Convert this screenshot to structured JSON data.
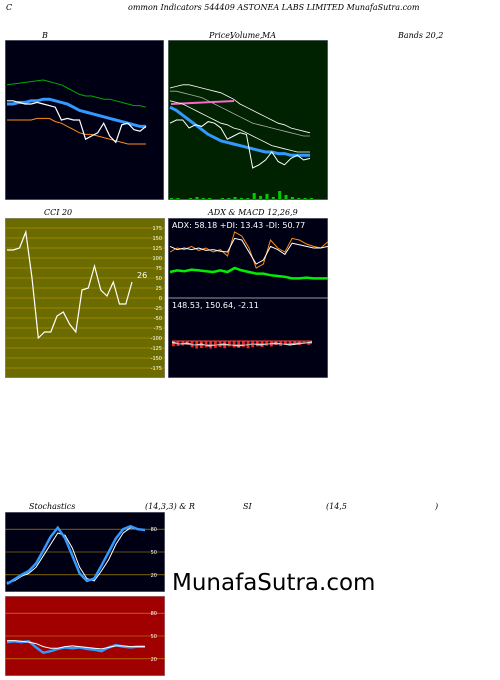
{
  "header": {
    "title": "C",
    "subtitle": "ommon  Indicators 544409 ASTONEA LABS LIMITED MunafaSutra.com"
  },
  "row1": {
    "label_b": "B",
    "label_price": "Price,",
    "label_volume": "Volume,",
    "label_ma": "MA",
    "label_bands": "Bands 20,2"
  },
  "row2": {
    "label_cci": "CCI 20",
    "label_adx": "ADX  & MACD 12,26,9",
    "adx_readout": "ADX: 58.18  +DI: 13.43 -DI: 50.77",
    "macd_readout": "148.53,  150.64,  -2.11"
  },
  "row3": {
    "label_stoch": "Stochastics",
    "label_params": "(14,3,3) & R",
    "label_si": "SI",
    "label_rsi_params": "(14,5",
    "label_close": ")"
  },
  "brand": "MunafaSutra.com",
  "colors": {
    "panel_black": "#000014",
    "panel_green": "#002200",
    "panel_olive": "#6b6b00",
    "panel_red": "#a00000",
    "blue": "#3399ff",
    "orange": "#ff8c1a",
    "green": "#00cc00"
  },
  "chart_data": [
    {
      "type": "line",
      "name": "Bollinger Bands",
      "series": [
        {
          "values": [
            72,
            72.5,
            73,
            73.5,
            74,
            74.5,
            75,
            74,
            73,
            72,
            70,
            68,
            66,
            65,
            65,
            64,
            63,
            63,
            62,
            61,
            60,
            59,
            59,
            58
          ]
        },
        {
          "values": [
            60,
            60,
            61,
            61,
            62,
            62,
            63,
            63,
            62,
            61,
            60,
            58,
            56,
            55,
            54,
            53,
            52,
            51,
            50,
            49,
            48,
            47,
            46,
            46
          ]
        },
        {
          "values": [
            50,
            50,
            50,
            50,
            50,
            51,
            51,
            51,
            49,
            48,
            46,
            44,
            42,
            41,
            41,
            40,
            39,
            38,
            37,
            36,
            35,
            35,
            35,
            35
          ]
        },
        {
          "values": [
            62,
            62,
            61,
            60,
            60,
            61,
            60,
            59,
            58,
            50,
            51,
            50,
            50,
            38,
            40,
            42,
            48,
            40,
            36,
            47,
            48,
            44,
            43,
            46
          ]
        }
      ]
    },
    {
      "type": "line",
      "name": "Price Volume MA",
      "series": [
        {
          "values": [
            70,
            71,
            72,
            72,
            71,
            70,
            69,
            68,
            67,
            65,
            63,
            60,
            58,
            56,
            54,
            52,
            50,
            48,
            47,
            45,
            44,
            43,
            42
          ]
        },
        {
          "values": [
            68,
            68,
            67,
            66,
            65,
            64,
            62,
            60,
            58,
            56,
            54,
            52,
            50,
            48,
            47,
            46,
            45,
            44,
            43,
            42,
            41,
            40,
            40
          ]
        },
        {
          "values": [
            62,
            61,
            60,
            58,
            56,
            54,
            52,
            50,
            48,
            47,
            45,
            44,
            42,
            40,
            38,
            36,
            34,
            33,
            32,
            31,
            30,
            30,
            30
          ]
        },
        {
          "values": [
            58,
            56,
            53,
            50,
            47,
            44,
            41,
            39,
            37,
            36,
            35,
            34,
            33,
            32,
            31,
            30,
            30,
            29,
            29,
            28,
            28,
            28,
            28
          ]
        },
        {
          "values": [
            48,
            50,
            50,
            45,
            47,
            46,
            49,
            48,
            45,
            38,
            40,
            42,
            41,
            20,
            22,
            25,
            30,
            24,
            22,
            26,
            28,
            25,
            26
          ]
        }
      ],
      "volume": [
        1,
        1,
        0,
        1,
        2,
        1,
        1,
        0,
        1,
        1,
        2,
        1,
        1,
        6,
        3,
        5,
        2,
        8,
        4,
        2,
        1,
        1,
        1
      ]
    },
    {
      "type": "line",
      "name": "CCI 20",
      "yticks": [
        175,
        150,
        125,
        100,
        75,
        50,
        25,
        0,
        -25,
        -50,
        -75,
        -100,
        -125,
        -150,
        -175
      ],
      "values": [
        120,
        120,
        125,
        165,
        50,
        -100,
        -85,
        -85,
        -45,
        -35,
        -65,
        -85,
        20,
        25,
        80,
        20,
        5,
        40,
        -15,
        -15,
        40
      ],
      "last_label": "26"
    },
    {
      "type": "line",
      "name": "ADX DI",
      "series": [
        {
          "values": [
            55,
            60,
            58,
            62,
            57,
            60,
            55,
            58,
            50,
            80,
            75,
            60,
            35,
            40,
            70,
            60,
            55,
            72,
            70,
            65,
            62,
            60,
            68
          ]
        },
        {
          "values": [
            62,
            58,
            60,
            58,
            60,
            57,
            58,
            56,
            55,
            72,
            70,
            55,
            40,
            45,
            62,
            58,
            52,
            66,
            64,
            62,
            60,
            60,
            62
          ]
        },
        {
          "values": [
            30,
            32,
            31,
            33,
            32,
            31,
            30,
            32,
            30,
            35,
            32,
            30,
            28,
            28,
            26,
            25,
            24,
            22,
            22,
            23,
            22,
            22,
            22
          ]
        }
      ]
    },
    {
      "type": "bar",
      "name": "MACD",
      "values": [
        -2.11,
        -2,
        -1.8,
        -1.5,
        -2.5,
        -3,
        -2.8,
        -2.6,
        -3,
        -2.7,
        -2.4,
        -2.9,
        -2.2,
        -2.6,
        -2.8,
        -2.3,
        -2.9,
        -2.5,
        -2.1,
        -2.4,
        -1.9,
        -2.2,
        -1.6,
        -2.0,
        -1.5,
        -1.8,
        -1.3,
        -1.6,
        -1.2,
        -1.5
      ]
    },
    {
      "type": "line",
      "name": "Stochastics",
      "yticks": [
        80,
        50,
        20
      ],
      "series": [
        {
          "values": [
            10,
            12,
            18,
            22,
            30,
            45,
            60,
            75,
            72,
            55,
            30,
            15,
            12,
            25,
            40,
            60,
            75,
            82,
            80,
            78
          ]
        },
        {
          "values": [
            8,
            14,
            20,
            25,
            35,
            52,
            70,
            82,
            68,
            45,
            22,
            12,
            15,
            32,
            50,
            68,
            80,
            84,
            80,
            79
          ]
        }
      ]
    },
    {
      "type": "line",
      "name": "RSI",
      "yticks": [
        80,
        50,
        20
      ],
      "series": [
        {
          "values": [
            42,
            43,
            42,
            43,
            35,
            28,
            30,
            33,
            35,
            34,
            35,
            33,
            32,
            30,
            35,
            38,
            36,
            35,
            36,
            36
          ]
        },
        {
          "values": [
            44,
            44,
            43,
            42,
            40,
            36,
            34,
            34,
            36,
            37,
            36,
            35,
            34,
            33,
            35,
            37,
            37,
            36,
            36,
            36
          ]
        }
      ]
    }
  ]
}
